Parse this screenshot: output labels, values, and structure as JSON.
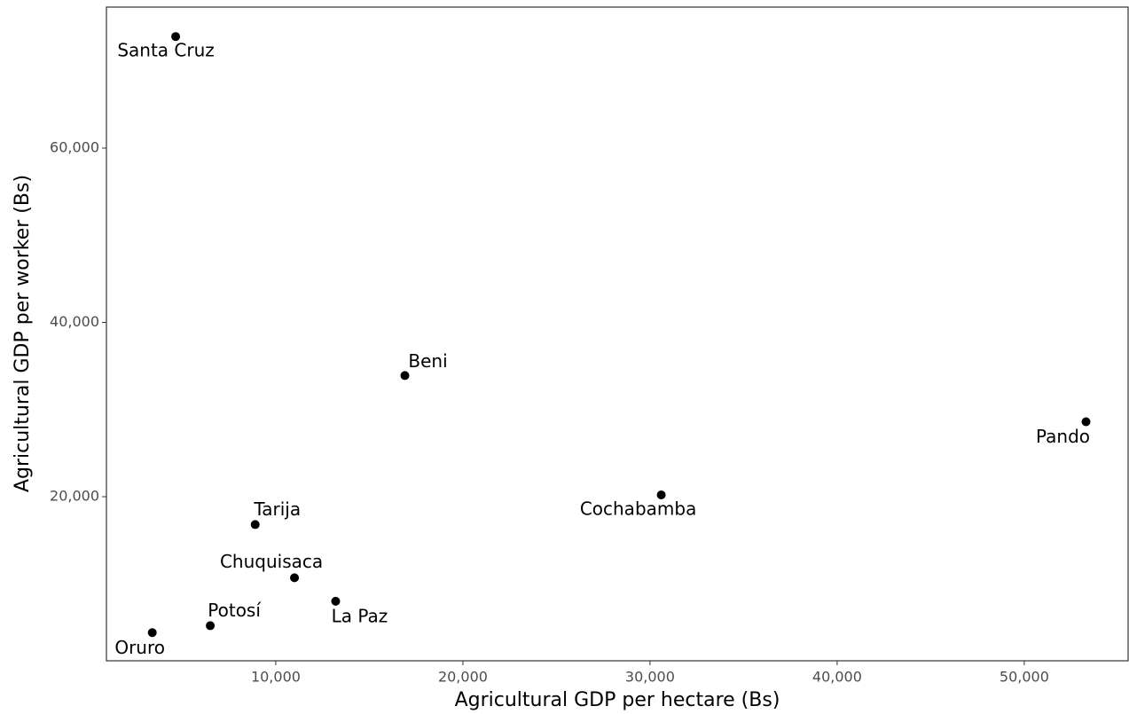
{
  "chart_data": {
    "type": "scatter",
    "x_label": "Agricultural GDP per hectare (Bs)",
    "y_label": "Agricultural GDP per worker (Bs)",
    "point_labels": [
      "Santa Cruz",
      "Beni",
      "Pando",
      "Cochabamba",
      "Tarija",
      "Chuquisaca",
      "La Paz",
      "Potosí",
      "Oruro"
    ],
    "x": [
      4650,
      16900,
      53300,
      30600,
      8900,
      11000,
      13200,
      6500,
      3400
    ],
    "values": [
      72800,
      33900,
      28600,
      20200,
      16800,
      10700,
      8000,
      5200,
      4400
    ],
    "color": "#000000",
    "xlim": [
      950,
      55550
    ],
    "ylim": [
      1170,
      76180
    ],
    "xticks": [
      {
        "value": 10000,
        "label": "10,000"
      },
      {
        "value": 20000,
        "label": "20,000"
      },
      {
        "value": 30000,
        "label": "30,000"
      },
      {
        "value": 40000,
        "label": "40,000"
      },
      {
        "value": 50000,
        "label": "50,000"
      }
    ],
    "yticks": [
      {
        "value": 20000,
        "label": "20,000"
      },
      {
        "value": 40000,
        "label": "40,000"
      },
      {
        "value": 60000,
        "label": "60,000"
      }
    ],
    "grid": false
  }
}
